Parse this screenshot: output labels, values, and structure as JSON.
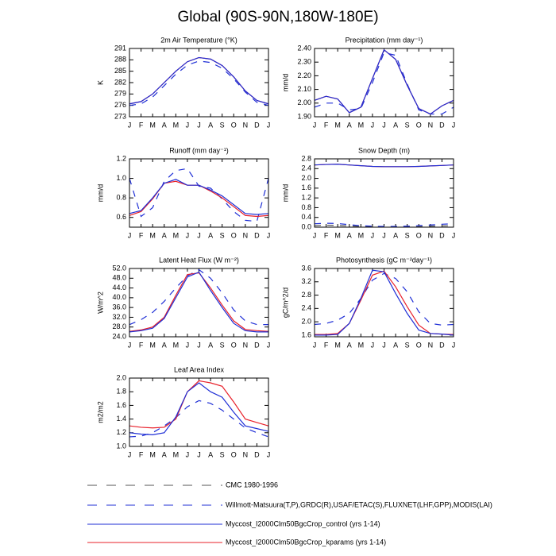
{
  "title": "Global (90S-90N,180W-180E)",
  "legend": [
    {
      "name": "CMC 1980-1996",
      "color": "#555555",
      "style": "dashed"
    },
    {
      "name": "Willmott-Matsuura(T,P),GRDC(R),USAF/ETAC(S),FLUXNET(LHF,GPP),MODIS(LAI)",
      "color": "#1f2fd6",
      "style": "dashed"
    },
    {
      "name": "Myccost_I2000Clm50BgcCrop_control (yrs 1-14)",
      "color": "#1f2fd6",
      "style": "solid"
    },
    {
      "name": "Myccost_I2000Clm50BgcCrop_kparams (yrs 1-14)",
      "color": "#e8202a",
      "style": "solid"
    }
  ],
  "chart_data": [
    {
      "type": "line",
      "title": "2m Air Temperature (°K)",
      "y_label": "K",
      "categories": [
        "J",
        "F",
        "M",
        "A",
        "M",
        "J",
        "J",
        "A",
        "S",
        "O",
        "N",
        "D",
        "J"
      ],
      "ylim": [
        273,
        291
      ],
      "yticks": [
        273,
        276,
        279,
        282,
        285,
        288,
        291
      ],
      "series": [
        {
          "color": "#1f2fd6",
          "style": "dashed",
          "values": [
            276.0,
            276.4,
            278.2,
            281.2,
            284.2,
            286.6,
            287.7,
            287.3,
            285.8,
            283.0,
            279.5,
            276.8,
            276.0
          ]
        },
        {
          "color": "#e8202a",
          "style": "solid",
          "values": [
            276.4,
            277.0,
            279.0,
            282.0,
            285.0,
            287.5,
            288.6,
            288.2,
            286.5,
            283.5,
            279.8,
            277.3,
            276.4
          ]
        },
        {
          "color": "#1f2fd6",
          "style": "solid",
          "values": [
            276.4,
            277.0,
            279.0,
            282.0,
            285.0,
            287.5,
            288.6,
            288.2,
            286.5,
            283.5,
            279.8,
            277.3,
            276.4
          ]
        }
      ]
    },
    {
      "type": "line",
      "title": "Precipitation (mm day⁻¹)",
      "y_label": "mm/d",
      "categories": [
        "J",
        "F",
        "M",
        "A",
        "M",
        "J",
        "J",
        "A",
        "S",
        "O",
        "N",
        "D",
        "J"
      ],
      "ylim": [
        1.9,
        2.4
      ],
      "yticks": [
        {
          "value": 1.9,
          "label": "1.90"
        },
        {
          "value": 2.0,
          "label": "2.00"
        },
        {
          "value": 2.1,
          "label": "2.10"
        },
        {
          "value": 2.2,
          "label": "2.20"
        },
        {
          "value": 2.3,
          "label": "2.30"
        },
        {
          "value": 2.4,
          "label": "2.40"
        }
      ],
      "series": [
        {
          "color": "#1f2fd6",
          "style": "dashed",
          "values": [
            1.97,
            2.0,
            2.0,
            1.95,
            1.96,
            2.15,
            2.37,
            2.35,
            2.14,
            1.95,
            1.92,
            1.92,
            1.97
          ]
        },
        {
          "color": "#e8202a",
          "style": "solid",
          "values": [
            2.02,
            2.05,
            2.03,
            1.93,
            1.97,
            2.18,
            2.39,
            2.32,
            2.13,
            1.96,
            1.92,
            1.98,
            2.02
          ]
        },
        {
          "color": "#1f2fd6",
          "style": "solid",
          "values": [
            2.02,
            2.05,
            2.03,
            1.93,
            1.97,
            2.18,
            2.39,
            2.32,
            2.13,
            1.96,
            1.92,
            1.98,
            2.02
          ]
        }
      ]
    },
    {
      "type": "line",
      "title": "Runoff (mm day⁻¹)",
      "y_label": "mm/d",
      "categories": [
        "J",
        "F",
        "M",
        "A",
        "M",
        "J",
        "J",
        "A",
        "S",
        "O",
        "N",
        "D",
        "J"
      ],
      "ylim": [
        0.5,
        1.2
      ],
      "yticks": [
        0.6,
        0.8,
        {
          "value": 1.0,
          "label": "1.0"
        },
        1.2
      ],
      "series": [
        {
          "color": "#1f2fd6",
          "style": "dashed",
          "values": [
            1.0,
            0.61,
            0.7,
            0.97,
            1.08,
            1.1,
            0.92,
            0.9,
            0.79,
            0.66,
            0.57,
            0.56,
            1.0
          ]
        },
        {
          "color": "#e8202a",
          "style": "solid",
          "values": [
            0.62,
            0.66,
            0.79,
            0.95,
            0.97,
            0.93,
            0.93,
            0.87,
            0.8,
            0.71,
            0.62,
            0.61,
            0.62
          ]
        },
        {
          "color": "#1f2fd6",
          "style": "solid",
          "values": [
            0.64,
            0.67,
            0.8,
            0.95,
            0.99,
            0.93,
            0.93,
            0.88,
            0.82,
            0.73,
            0.64,
            0.63,
            0.64
          ]
        }
      ]
    },
    {
      "type": "line",
      "title": "Snow Depth (m)",
      "y_label": "mm/d",
      "categories": [
        "J",
        "F",
        "M",
        "A",
        "M",
        "J",
        "J",
        "A",
        "S",
        "O",
        "N",
        "D",
        "J"
      ],
      "ylim": [
        0,
        2.8
      ],
      "yticks": [
        {
          "value": 0,
          "label": "0.0"
        },
        0.4,
        0.8,
        1.2,
        1.6,
        {
          "value": 2.0,
          "label": "2.0"
        },
        2.4,
        2.8
      ],
      "series": [
        {
          "color": "#555555",
          "style": "dashed",
          "values": [
            0.06,
            0.08,
            0.07,
            0.05,
            0.03,
            0.01,
            0.01,
            0.01,
            0.01,
            0.02,
            0.04,
            0.05,
            0.06
          ]
        },
        {
          "color": "#1f2fd6",
          "style": "dashed",
          "values": [
            0.14,
            0.16,
            0.15,
            0.1,
            0.06,
            0.04,
            0.03,
            0.03,
            0.04,
            0.06,
            0.09,
            0.12,
            0.14
          ]
        },
        {
          "color": "#e8202a",
          "style": "solid",
          "values": [
            2.55,
            2.57,
            2.58,
            2.55,
            2.52,
            2.49,
            2.48,
            2.48,
            2.48,
            2.49,
            2.51,
            2.53,
            2.55
          ]
        },
        {
          "color": "#1f2fd6",
          "style": "solid",
          "values": [
            2.55,
            2.57,
            2.58,
            2.55,
            2.52,
            2.49,
            2.48,
            2.48,
            2.48,
            2.49,
            2.51,
            2.53,
            2.55
          ]
        }
      ]
    },
    {
      "type": "line",
      "title": "Latent Heat Flux (W m⁻²)",
      "y_label": "W/m^2",
      "categories": [
        "J",
        "F",
        "M",
        "A",
        "M",
        "J",
        "J",
        "A",
        "S",
        "O",
        "N",
        "D",
        "J"
      ],
      "ylim": [
        24,
        52
      ],
      "yticks": [
        {
          "value": 24,
          "label": "24.0"
        },
        {
          "value": 28,
          "label": "28.0"
        },
        {
          "value": 32,
          "label": "32.0"
        },
        {
          "value": 36,
          "label": "36.0"
        },
        {
          "value": 40,
          "label": "40.0"
        },
        {
          "value": 44,
          "label": "44.0"
        },
        {
          "value": 48,
          "label": "48.0"
        },
        {
          "value": 52,
          "label": "52.0"
        }
      ],
      "series": [
        {
          "color": "#1f2fd6",
          "style": "dashed",
          "values": [
            29,
            31,
            34,
            38.5,
            44,
            49,
            51.5,
            48,
            42,
            35,
            30.5,
            29,
            29
          ]
        },
        {
          "color": "#e8202a",
          "style": "solid",
          "values": [
            26.2,
            26.8,
            28,
            32,
            41,
            49.5,
            50.2,
            44,
            37,
            30.5,
            27,
            26.5,
            26.2
          ]
        },
        {
          "color": "#1f2fd6",
          "style": "solid",
          "values": [
            26,
            26.5,
            27.5,
            31.5,
            40,
            48.5,
            50.5,
            43,
            36,
            29.5,
            26.5,
            26,
            26
          ]
        }
      ]
    },
    {
      "type": "line",
      "title": "Photosynthesis (gC m⁻²day⁻¹)",
      "y_label": "gC/m^2/d",
      "categories": [
        "J",
        "F",
        "M",
        "A",
        "M",
        "J",
        "J",
        "A",
        "S",
        "O",
        "N",
        "D",
        "J"
      ],
      "ylim": [
        1.55,
        3.6
      ],
      "yticks": [
        1.6,
        {
          "value": 2.0,
          "label": "2.0"
        },
        2.4,
        2.8,
        3.2,
        3.6
      ],
      "series": [
        {
          "color": "#1f2fd6",
          "style": "dashed",
          "values": [
            1.92,
            1.95,
            2.05,
            2.25,
            2.7,
            3.25,
            3.45,
            3.3,
            2.9,
            2.3,
            1.95,
            1.9,
            1.92
          ]
        },
        {
          "color": "#e8202a",
          "style": "solid",
          "values": [
            1.62,
            1.62,
            1.65,
            1.95,
            2.65,
            3.4,
            3.52,
            3.05,
            2.45,
            1.9,
            1.65,
            1.63,
            1.62
          ]
        },
        {
          "color": "#1f2fd6",
          "style": "solid",
          "values": [
            1.6,
            1.6,
            1.62,
            1.95,
            2.7,
            3.55,
            3.5,
            2.85,
            2.25,
            1.75,
            1.65,
            1.63,
            1.6
          ]
        }
      ]
    },
    {
      "type": "line",
      "title": "Leaf Area Index",
      "y_label": "m2/m2",
      "categories": [
        "J",
        "F",
        "M",
        "A",
        "M",
        "J",
        "J",
        "A",
        "S",
        "O",
        "N",
        "D",
        "J"
      ],
      "ylim": [
        1.0,
        2.0
      ],
      "yticks": [
        {
          "value": 1.0,
          "label": "1.0"
        },
        1.2,
        1.4,
        1.6,
        1.8,
        {
          "value": 2.0,
          "label": "2.0"
        }
      ],
      "series": [
        {
          "color": "#1f2fd6",
          "style": "dashed",
          "values": [
            1.14,
            1.15,
            1.2,
            1.3,
            1.42,
            1.58,
            1.67,
            1.63,
            1.53,
            1.4,
            1.27,
            1.2,
            1.14
          ]
        },
        {
          "color": "#e8202a",
          "style": "solid",
          "values": [
            1.3,
            1.28,
            1.27,
            1.28,
            1.4,
            1.8,
            1.96,
            1.93,
            1.88,
            1.65,
            1.4,
            1.35,
            1.3
          ]
        },
        {
          "color": "#1f2fd6",
          "style": "solid",
          "values": [
            1.2,
            1.18,
            1.17,
            1.2,
            1.43,
            1.8,
            1.93,
            1.8,
            1.72,
            1.5,
            1.3,
            1.26,
            1.22
          ]
        }
      ]
    }
  ]
}
